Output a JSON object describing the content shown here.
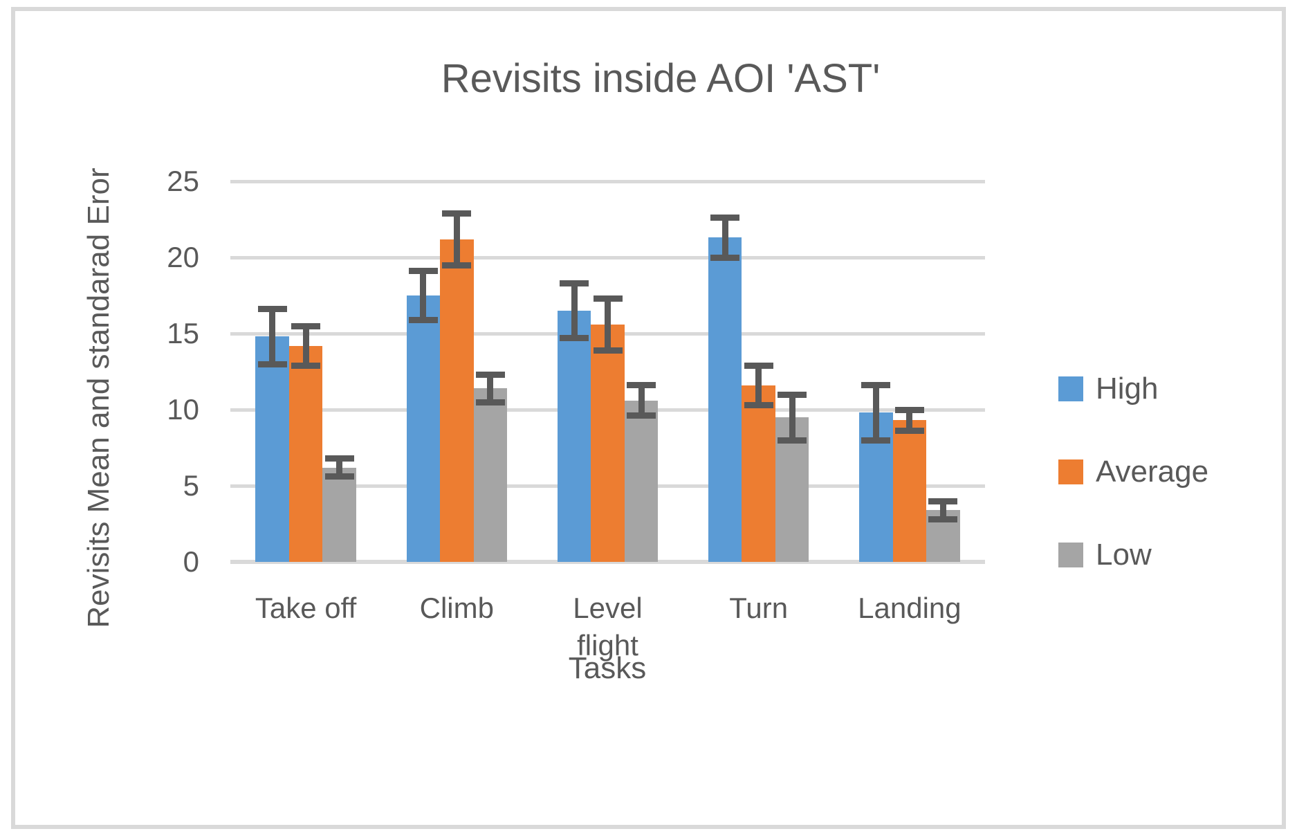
{
  "frame": {
    "border_color": "#d9d9d9",
    "background": "#ffffff"
  },
  "chart_data": {
    "type": "bar",
    "title": "Revisits inside AOI 'AST'",
    "xlabel": "Tasks",
    "ylabel": "Revisits Mean and standarad Eror",
    "categories": [
      "Take off",
      "Climb",
      "Level flight",
      "Turn",
      "Landing"
    ],
    "series": [
      {
        "name": "High",
        "color": "#5b9bd5",
        "values": [
          14.8,
          17.5,
          16.5,
          21.3,
          9.8
        ],
        "errors": [
          1.8,
          1.6,
          1.8,
          1.3,
          1.8
        ]
      },
      {
        "name": "Average",
        "color": "#ed7d31",
        "values": [
          14.2,
          21.2,
          15.6,
          11.6,
          9.3
        ],
        "errors": [
          1.3,
          1.7,
          1.7,
          1.3,
          0.7
        ]
      },
      {
        "name": "Low",
        "color": "#a5a5a5",
        "values": [
          6.2,
          11.4,
          10.6,
          9.5,
          3.4
        ],
        "errors": [
          0.6,
          0.9,
          1.0,
          1.5,
          0.6
        ]
      }
    ],
    "ylim": [
      0,
      25
    ],
    "yticks": [
      0,
      5,
      10,
      15,
      20,
      25
    ],
    "grid": true,
    "legend_position": "right",
    "legend_labels": [
      "High",
      "Average",
      "Low"
    ],
    "gridline_color": "#d9d9d9",
    "error_bar_color": "#595959",
    "text_color": "#595959"
  }
}
